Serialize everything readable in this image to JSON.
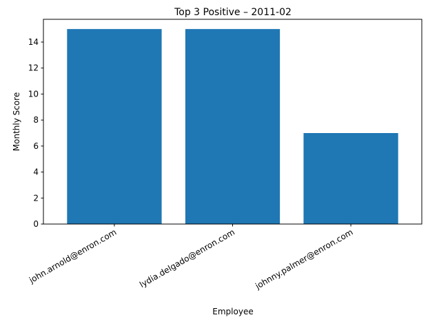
{
  "chart_data": {
    "type": "bar",
    "title": "Top 3 Positive – 2011-02",
    "xlabel": "Employee",
    "ylabel": "Monthly Score",
    "categories": [
      "john.arnold@enron.com",
      "lydia.delgado@enron.com",
      "johnny.palmer@enron.com"
    ],
    "values": [
      15,
      15,
      7
    ],
    "ylim": [
      0,
      15.75
    ],
    "yticks": [
      0,
      2,
      4,
      6,
      8,
      10,
      12,
      14
    ],
    "grid": false,
    "bar_color": "#1f77b4"
  }
}
